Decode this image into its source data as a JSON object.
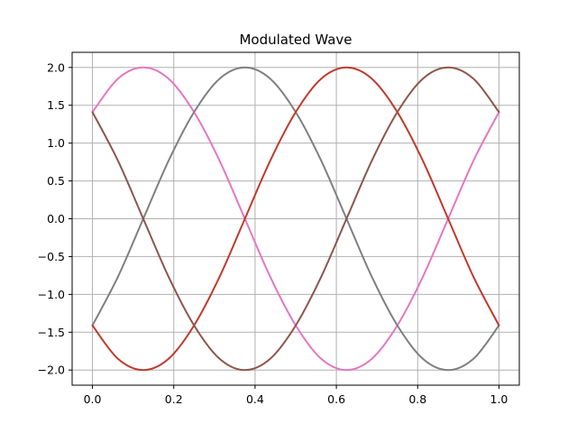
{
  "chart_data": {
    "type": "line",
    "title": "Modulated Wave",
    "xlabel": "",
    "ylabel": "",
    "xlim": [
      -0.05,
      1.05
    ],
    "ylim": [
      -2.2,
      2.2
    ],
    "grid": true,
    "legend": "none",
    "x_ticks": [
      0.0,
      0.2,
      0.4,
      0.6,
      0.8,
      1.0
    ],
    "x_tick_labels": [
      "0.0",
      "0.2",
      "0.4",
      "0.6",
      "0.8",
      "1.0"
    ],
    "y_ticks": [
      2.0,
      1.5,
      1.0,
      0.5,
      0.0,
      -0.5,
      -1.0,
      -1.5,
      -2.0
    ],
    "y_tick_labels": [
      "2.0",
      "1.5",
      "1.0",
      "0.5",
      "0.0",
      "−0.5",
      "−1.0",
      "−1.5",
      "−2.0"
    ],
    "x": [
      0.0,
      0.0625,
      0.125,
      0.1875,
      0.25,
      0.3125,
      0.375,
      0.4375,
      0.5,
      0.5625,
      0.625,
      0.6875,
      0.75,
      0.8125,
      0.875,
      0.9375,
      1.0
    ],
    "series": [
      {
        "color": "#e377c2",
        "values": [
          1.41,
          1.85,
          2.0,
          1.85,
          1.41,
          0.77,
          0.0,
          -0.77,
          -1.41,
          -1.85,
          -2.0,
          -1.85,
          -1.41,
          -0.77,
          0.0,
          0.77,
          1.41
        ]
      },
      {
        "color": "#7f7f7f",
        "values": [
          -1.41,
          -0.77,
          0.0,
          0.77,
          1.41,
          1.85,
          2.0,
          1.85,
          1.41,
          0.77,
          0.0,
          -0.77,
          -1.41,
          -1.85,
          -2.0,
          -1.85,
          -1.41
        ]
      },
      {
        "color": "#c0392b",
        "values": [
          -1.41,
          -1.85,
          -2.0,
          -1.85,
          -1.41,
          -0.77,
          0.0,
          0.77,
          1.41,
          1.85,
          2.0,
          1.85,
          1.41,
          0.77,
          0.0,
          -0.77,
          -1.41
        ]
      },
      {
        "color": "#8c564b",
        "values": [
          1.41,
          0.77,
          0.0,
          -0.77,
          -1.41,
          -1.85,
          -2.0,
          -1.85,
          -1.41,
          -0.77,
          0.0,
          0.77,
          1.41,
          1.85,
          2.0,
          1.85,
          1.41
        ]
      }
    ]
  }
}
